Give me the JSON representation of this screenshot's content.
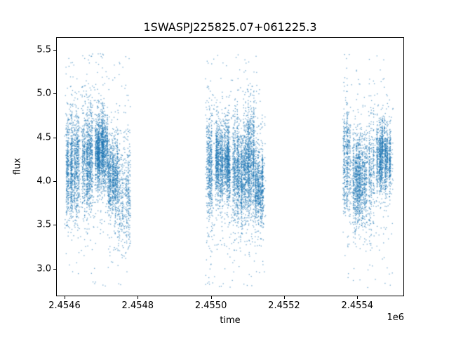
{
  "chart_data": {
    "type": "scatter",
    "title": "1SWASPJ225825.07+061225.3",
    "xlabel": "time",
    "ylabel": "flux",
    "x_offset_label": "1e6",
    "xlim": [
      2454577,
      2455528
    ],
    "ylim": [
      2.684,
      5.646
    ],
    "xticks": [
      {
        "value": 2454600,
        "label": "2.4546"
      },
      {
        "value": 2454800,
        "label": "2.4548"
      },
      {
        "value": 2455000,
        "label": "2.4550"
      },
      {
        "value": 2455200,
        "label": "2.4552"
      },
      {
        "value": 2455400,
        "label": "2.4554"
      }
    ],
    "yticks": [
      {
        "value": 3.0,
        "label": "3.0"
      },
      {
        "value": 3.5,
        "label": "3.5"
      },
      {
        "value": 4.0,
        "label": "4.0"
      },
      {
        "value": 4.5,
        "label": "4.5"
      },
      {
        "value": 5.0,
        "label": "5.0"
      },
      {
        "value": 5.5,
        "label": "5.5"
      }
    ],
    "grid": false,
    "legend": "none",
    "marker_color": "#1f77b4",
    "marker_px": 1.3,
    "marker_alpha": 0.65,
    "flux_min": 2.78,
    "flux_max": 5.46,
    "seed": 20240917,
    "clusters": [
      {
        "name": "season-1",
        "bands": [
          {
            "t0": 2454604,
            "t1": 2454640,
            "n": 1100,
            "mean": 4.2,
            "std": 0.3
          },
          {
            "t0": 2454648,
            "t1": 2454676,
            "n": 900,
            "mean": 4.25,
            "std": 0.3
          },
          {
            "t0": 2454684,
            "t1": 2454718,
            "n": 1500,
            "mean": 4.35,
            "std": 0.2
          },
          {
            "t0": 2454718,
            "t1": 2454745,
            "n": 800,
            "mean": 4.05,
            "std": 0.22
          },
          {
            "t0": 2454745,
            "t1": 2454780,
            "n": 450,
            "mean": 3.85,
            "std": 0.3
          },
          {
            "t0": 2454600,
            "t1": 2454780,
            "n": 550,
            "mean": 4.2,
            "std": 0.6,
            "uniform": true
          }
        ]
      },
      {
        "name": "season-2",
        "bands": [
          {
            "t0": 2454988,
            "t1": 2455005,
            "n": 450,
            "mean": 4.15,
            "std": 0.3
          },
          {
            "t0": 2455012,
            "t1": 2455052,
            "n": 1500,
            "mean": 4.2,
            "std": 0.22
          },
          {
            "t0": 2455060,
            "t1": 2455095,
            "n": 1100,
            "mean": 4.1,
            "std": 0.28
          },
          {
            "t0": 2455095,
            "t1": 2455120,
            "n": 900,
            "mean": 4.2,
            "std": 0.3
          },
          {
            "t0": 2455120,
            "t1": 2455145,
            "n": 700,
            "mean": 3.9,
            "std": 0.2
          },
          {
            "t0": 2454985,
            "t1": 2455150,
            "n": 650,
            "mean": 4.1,
            "std": 0.6,
            "uniform": true
          }
        ]
      },
      {
        "name": "season-3",
        "bands": [
          {
            "t0": 2455362,
            "t1": 2455382,
            "n": 450,
            "mean": 4.2,
            "std": 0.3
          },
          {
            "t0": 2455388,
            "t1": 2455428,
            "n": 1100,
            "mean": 4.0,
            "std": 0.25
          },
          {
            "t0": 2455432,
            "t1": 2455448,
            "n": 250,
            "mean": 4.1,
            "std": 0.35
          },
          {
            "t0": 2455452,
            "t1": 2455492,
            "n": 1200,
            "mean": 4.3,
            "std": 0.18
          },
          {
            "t0": 2455360,
            "t1": 2455498,
            "n": 450,
            "mean": 4.15,
            "std": 0.55,
            "uniform": true
          }
        ]
      }
    ]
  }
}
